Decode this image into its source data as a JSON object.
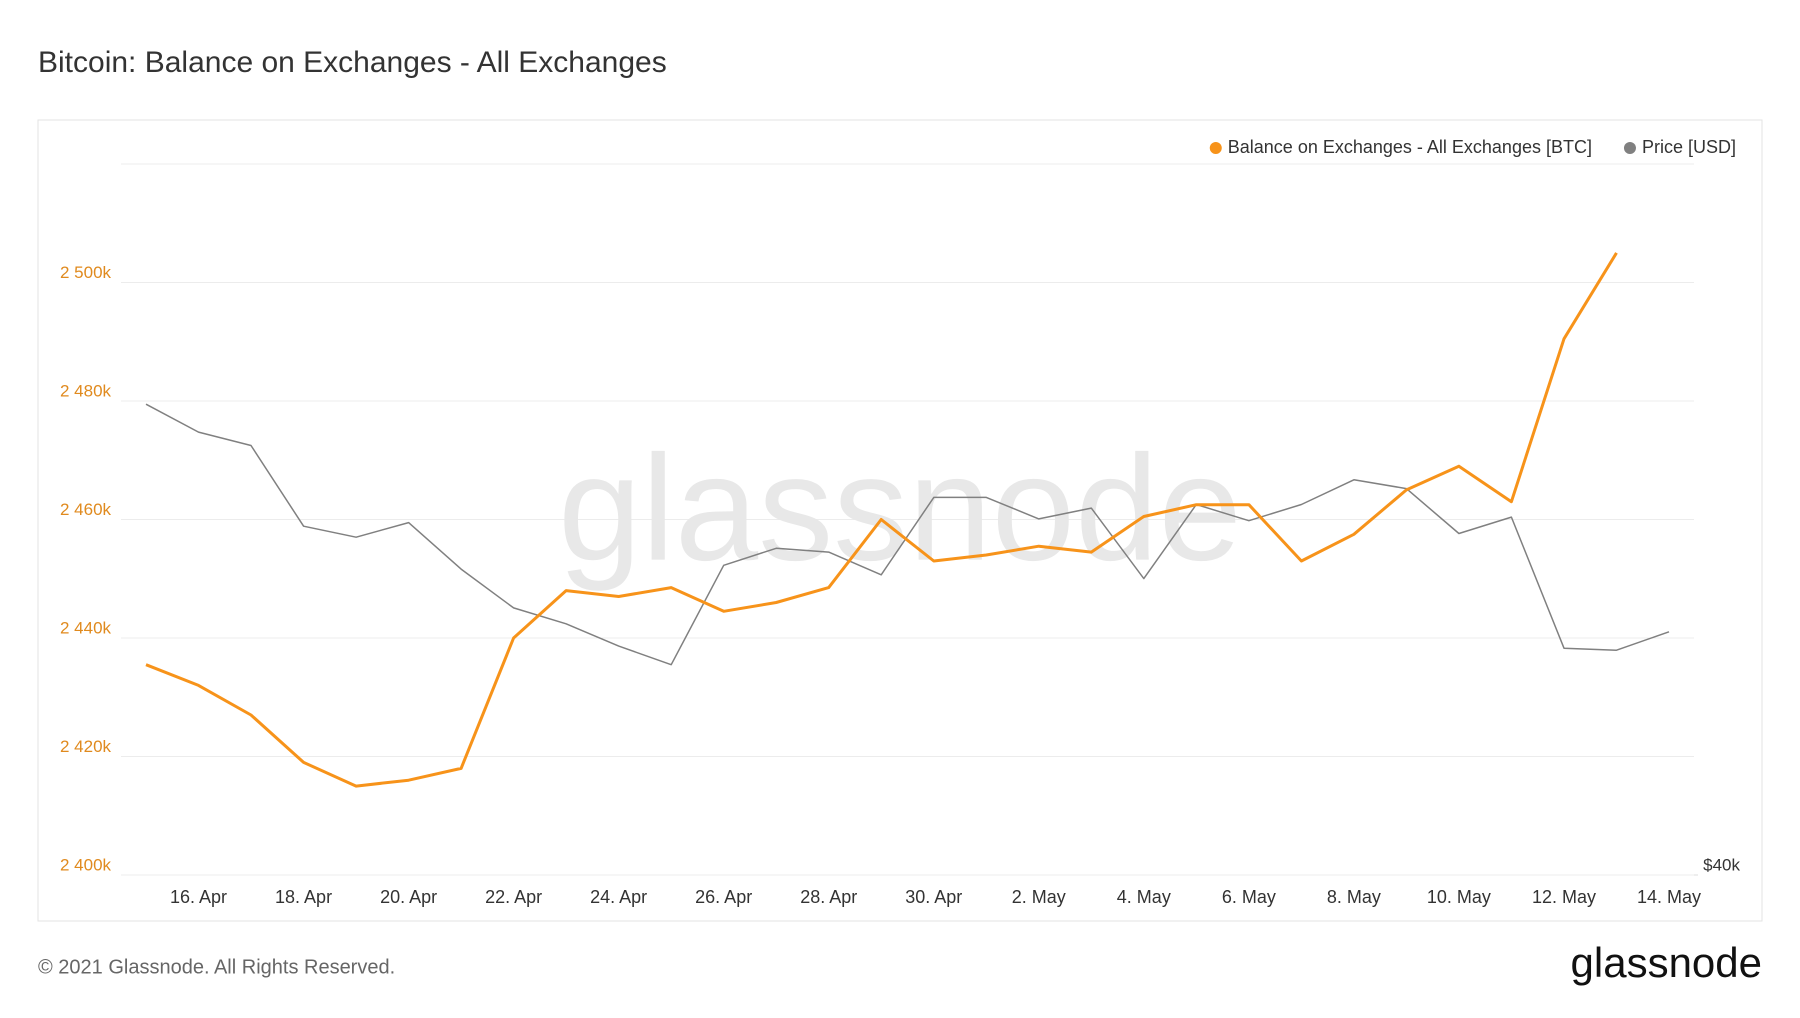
{
  "chart_data": {
    "type": "line",
    "title": "Bitcoin: Balance on Exchanges - All Exchanges",
    "watermark": "glassnode",
    "categories": [
      null,
      "16. Apr",
      null,
      "18. Apr",
      null,
      "20. Apr",
      null,
      "22. Apr",
      null,
      "24. Apr",
      null,
      "26. Apr",
      null,
      "28. Apr",
      null,
      "30. Apr",
      null,
      "2. May",
      null,
      "4. May",
      null,
      "6. May",
      null,
      "8. May",
      null,
      "10. May",
      null,
      "12. May",
      null,
      "14. May"
    ],
    "series": [
      {
        "name": "Balance on Exchanges - All Exchanges [BTC]",
        "color": "#f7931a",
        "axis": "y",
        "values": [
          2435500,
          2432000,
          2427000,
          2419000,
          2415000,
          2416000,
          2418000,
          2440000,
          2448000,
          2447000,
          2448500,
          2444500,
          2446000,
          2448500,
          2460000,
          2453000,
          2454000,
          2455500,
          2454500,
          2460500,
          2462500,
          2462500,
          2453000,
          2457500,
          2465000,
          2469000,
          2463000,
          2490500,
          2505000,
          null
        ]
      },
      {
        "name": "Price [USD]",
        "color": "#808080",
        "axis": "y2",
        "values": [
          63300,
          61600,
          60800,
          56200,
          55600,
          56400,
          53900,
          51900,
          51100,
          50000,
          49100,
          54100,
          55000,
          54800,
          53600,
          57800,
          57800,
          56600,
          57200,
          53400,
          57400,
          56500,
          57400,
          58800,
          58300,
          55800,
          56700,
          49900,
          49800,
          50700
        ]
      }
    ],
    "ylim": [
      2400000,
      2520000
    ],
    "yticks": [
      {
        "value": 2400000,
        "label": "2 400k"
      },
      {
        "value": 2420000,
        "label": "2 420k"
      },
      {
        "value": 2440000,
        "label": "2 440k"
      },
      {
        "value": 2460000,
        "label": "2 460k"
      },
      {
        "value": 2480000,
        "label": "2 480k"
      },
      {
        "value": 2500000,
        "label": "2 500k"
      }
    ],
    "y2lim": [
      40000,
      80000
    ],
    "y2ticks": [
      {
        "value": 40000,
        "label": "$40k"
      }
    ],
    "y2log": true,
    "grid": true,
    "legend": "top-right"
  },
  "footer": {
    "copyright": "© 2021 Glassnode. All Rights Reserved.",
    "logo": "glassnode"
  }
}
